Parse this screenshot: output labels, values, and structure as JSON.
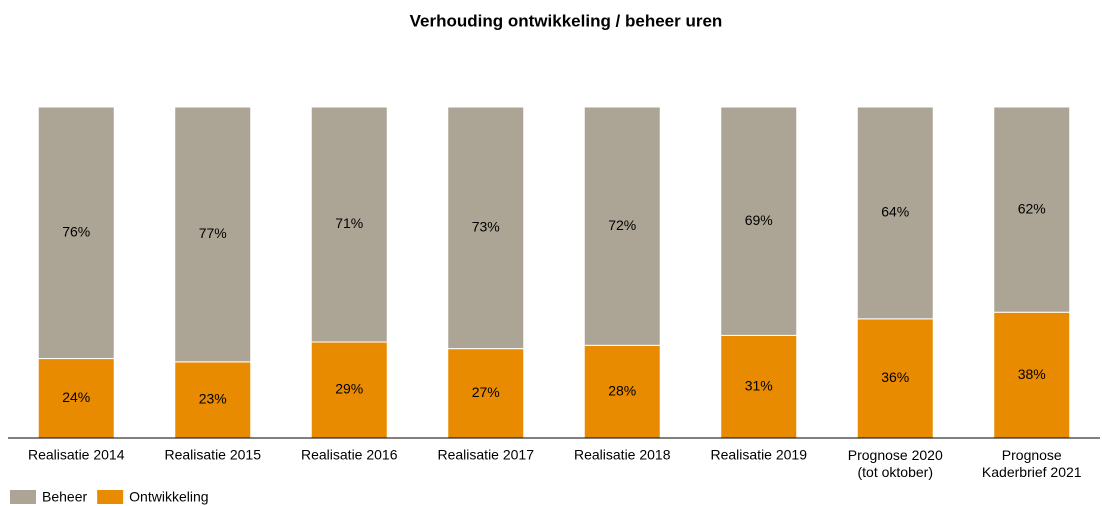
{
  "chart_data": {
    "type": "bar",
    "stacked": true,
    "title": "Verhouding ontwikkeling / beheer uren",
    "categories": [
      "Realisatie 2014",
      "Realisatie 2015",
      "Realisatie 2016",
      "Realisatie 2017",
      "Realisatie 2018",
      "Realisatie 2019",
      "Prognose 2020\n(tot oktober)",
      "Prognose\nKaderbrief 2021"
    ],
    "series": [
      {
        "name": "Ontwikkeling",
        "color": "#e98b00",
        "values": [
          24,
          23,
          29,
          27,
          28,
          31,
          36,
          38
        ],
        "value_labels": [
          "24%",
          "23%",
          "29%",
          "27%",
          "28%",
          "31%",
          "36%",
          "38%"
        ]
      },
      {
        "name": "Beheer",
        "color": "#aca595",
        "values": [
          76,
          77,
          71,
          73,
          72,
          69,
          64,
          62
        ],
        "value_labels": [
          "76%",
          "77%",
          "71%",
          "73%",
          "72%",
          "69%",
          "64%",
          "62%"
        ]
      }
    ],
    "ylim": [
      0,
      100
    ],
    "legend": "bottom-left"
  }
}
